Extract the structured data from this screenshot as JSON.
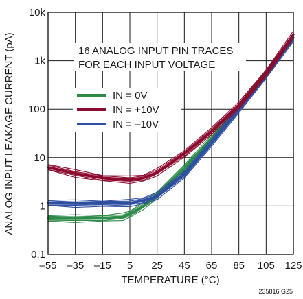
{
  "chart_data": {
    "type": "line",
    "title": "",
    "xlabel": "TEMPERATURE  (°C)",
    "ylabel": "ANALOG INPUT LEAKAGE CURRENT (pA)",
    "xlim": [
      -55,
      125
    ],
    "ylim": [
      0.1,
      10000
    ],
    "y_scale": "log",
    "grid": true,
    "x_ticks": [
      "–55",
      "–35",
      "–15",
      "5",
      "25",
      "45",
      "65",
      "85",
      "105",
      "125"
    ],
    "y_ticks": [
      "0.1",
      "1",
      "10",
      "100",
      "1k",
      "10k"
    ],
    "annotation": [
      "16 ANALOG INPUT PIN TRACES",
      "FOR EACH INPUT VOLTAGE"
    ],
    "legend_position": "center-left",
    "figure_code": "235816 G25",
    "series": [
      {
        "name": "IN = 0V",
        "color": "#2e8b4a",
        "x": [
          -55,
          -35,
          -15,
          0,
          5,
          15,
          25,
          45,
          65,
          85,
          105,
          125
        ],
        "y": [
          0.55,
          0.55,
          0.56,
          0.6,
          0.68,
          1.0,
          1.7,
          6.0,
          25,
          110,
          550,
          3000
        ]
      },
      {
        "name": "IN = +10V",
        "color": "#8b0a2e",
        "x": [
          -55,
          -35,
          -15,
          5,
          15,
          25,
          45,
          65,
          85,
          105,
          125
        ],
        "y": [
          6.3,
          4.7,
          3.8,
          3.5,
          3.8,
          5.0,
          12,
          35,
          120,
          550,
          3500
        ]
      },
      {
        "name": "IN = –10V",
        "color": "#2e4fa0",
        "x": [
          -55,
          -35,
          -15,
          5,
          15,
          25,
          45,
          65,
          85,
          105,
          125
        ],
        "y": [
          1.15,
          1.12,
          1.12,
          1.15,
          1.3,
          1.6,
          4.5,
          20,
          100,
          500,
          3000
        ]
      }
    ]
  }
}
